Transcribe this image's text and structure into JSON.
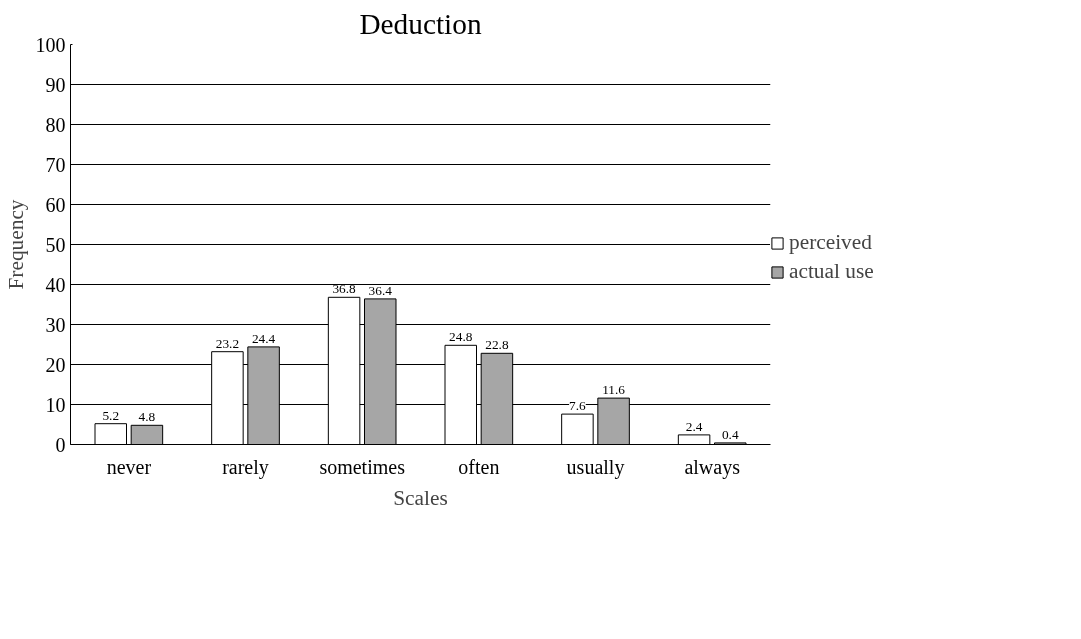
{
  "chart_data": {
    "type": "bar",
    "title": "Deduction",
    "xlabel": "Scales",
    "ylabel": "Frequency",
    "categories": [
      "never",
      "rarely",
      "sometimes",
      "often",
      "usually",
      "always"
    ],
    "series": [
      {
        "name": "perceived",
        "color": "#ffffff",
        "values": [
          5.2,
          23.2,
          36.8,
          24.8,
          7.6,
          2.4
        ]
      },
      {
        "name": "actual use",
        "color": "#a6a6a6",
        "values": [
          4.8,
          24.4,
          36.4,
          22.8,
          11.6,
          0.4
        ]
      }
    ],
    "ylim": [
      0,
      100
    ],
    "yticks": [
      0,
      10,
      20,
      30,
      40,
      50,
      60,
      70,
      80,
      90,
      100
    ],
    "grid": "y",
    "legend": "right",
    "data_labels": true
  }
}
